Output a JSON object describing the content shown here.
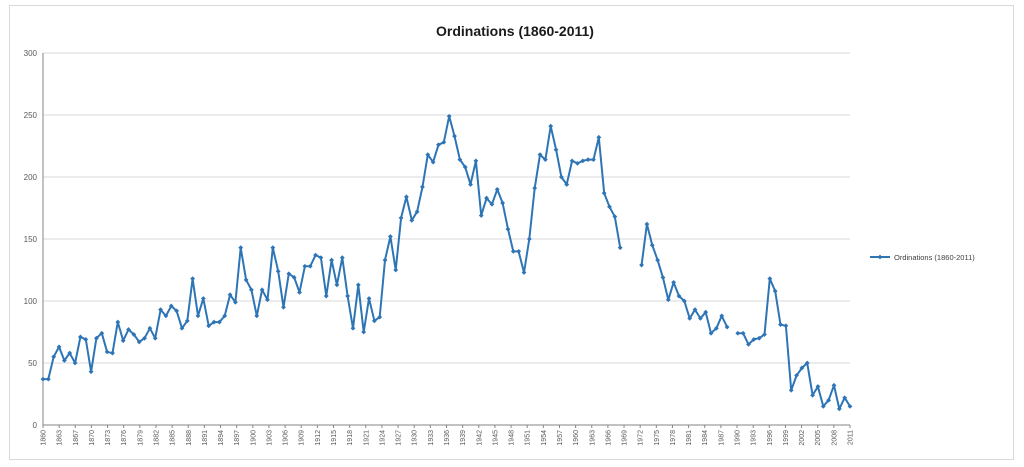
{
  "chart_data": {
    "type": "line",
    "title": "Ordinations (1860-2011)",
    "xlabel": "",
    "ylabel": "",
    "ylim": [
      0,
      300
    ],
    "yticks": [
      0,
      50,
      100,
      150,
      200,
      250,
      300
    ],
    "xlim": [
      1860,
      2011
    ],
    "x_tick_labels": [
      "1860",
      "1863",
      "1867",
      "1870",
      "1873",
      "1876",
      "1879",
      "1882",
      "1885",
      "1888",
      "1891",
      "1894",
      "1897",
      "1900",
      "1903",
      "1906",
      "1909",
      "1912",
      "1915",
      "1918",
      "1921",
      "1924",
      "1927",
      "1930",
      "1933",
      "1936",
      "1939",
      "1942",
      "1945",
      "1948",
      "1951",
      "1954",
      "1957",
      "1960",
      "1963",
      "1966",
      "1969",
      "1972",
      "1975",
      "1978",
      "1981",
      "1984",
      "1987",
      "1990",
      "1993",
      "1996",
      "1999",
      "2002",
      "2005",
      "2008",
      "2011"
    ],
    "grid": true,
    "legend_position": "right",
    "color": "#2e75b6",
    "series": [
      {
        "name": "Ordinations (1860-2011)",
        "x": [
          1860,
          1861,
          1862,
          1863,
          1864,
          1865,
          1866,
          1867,
          1868,
          1869,
          1870,
          1871,
          1872,
          1873,
          1874,
          1875,
          1876,
          1877,
          1878,
          1879,
          1880,
          1881,
          1882,
          1883,
          1884,
          1885,
          1886,
          1887,
          1888,
          1889,
          1890,
          1891,
          1892,
          1893,
          1894,
          1895,
          1896,
          1897,
          1898,
          1899,
          1900,
          1901,
          1902,
          1903,
          1904,
          1905,
          1906,
          1907,
          1908,
          1909,
          1910,
          1911,
          1912,
          1913,
          1914,
          1915,
          1916,
          1917,
          1918,
          1919,
          1920,
          1921,
          1922,
          1923,
          1924,
          1925,
          1926,
          1927,
          1928,
          1929,
          1930,
          1931,
          1932,
          1933,
          1934,
          1935,
          1936,
          1937,
          1938,
          1939,
          1940,
          1941,
          1942,
          1943,
          1944,
          1945,
          1946,
          1947,
          1948,
          1949,
          1950,
          1951,
          1952,
          1953,
          1954,
          1955,
          1956,
          1957,
          1958,
          1959,
          1960,
          1961,
          1962,
          1963,
          1964,
          1965,
          1966,
          1967,
          1968,
          1969,
          1970,
          1971,
          1972,
          1973,
          1974,
          1975,
          1976,
          1977,
          1978,
          1979,
          1980,
          1981,
          1982,
          1983,
          1984,
          1985,
          1986,
          1987,
          1988,
          1989,
          1990,
          1991,
          1992,
          1993,
          1994,
          1995,
          1996,
          1997,
          1998,
          1999,
          2000,
          2001,
          2002,
          2003,
          2004,
          2005,
          2006,
          2007,
          2008,
          2009,
          2010,
          2011
        ],
        "values": [
          37,
          37,
          55,
          63,
          52,
          58,
          50,
          71,
          69,
          43,
          70,
          74,
          59,
          58,
          83,
          68,
          77,
          73,
          67,
          70,
          78,
          70,
          93,
          88,
          96,
          92,
          78,
          84,
          118,
          88,
          102,
          80,
          83,
          83,
          88,
          105,
          99,
          143,
          117,
          109,
          88,
          109,
          101,
          143,
          124,
          95,
          122,
          119,
          107,
          128,
          128,
          137,
          135,
          104,
          133,
          113,
          135,
          104,
          78,
          113,
          75,
          102,
          84,
          87,
          133,
          152,
          125,
          167,
          184,
          165,
          172,
          192,
          218,
          212,
          226,
          228,
          249,
          233,
          214,
          208,
          194,
          213,
          169,
          183,
          178,
          190,
          179,
          158,
          140,
          140,
          123,
          150,
          191,
          218,
          214,
          241,
          222,
          200,
          194,
          213,
          211,
          213,
          214,
          214,
          232,
          187,
          176,
          168,
          143,
          null,
          null,
          null,
          129,
          162,
          145,
          133,
          119,
          101,
          115,
          104,
          100,
          86,
          93,
          86,
          91,
          74,
          78,
          88,
          79,
          null,
          74,
          74,
          65,
          69,
          70,
          73,
          118,
          108,
          81,
          80,
          28,
          40,
          46,
          50,
          24,
          31,
          15,
          20,
          32,
          13,
          22,
          15
        ]
      }
    ]
  }
}
